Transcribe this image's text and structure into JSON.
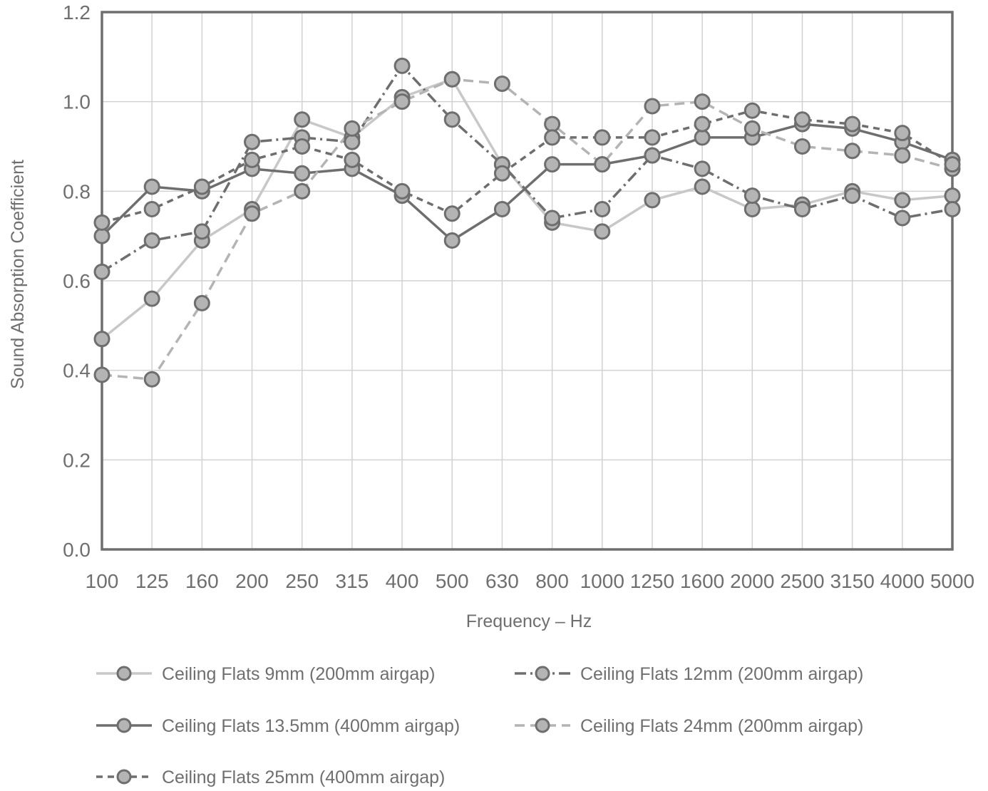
{
  "chart_data": {
    "type": "line",
    "title": "",
    "xlabel": "Frequency – Hz",
    "ylabel": "Sound Absorption Coefficient",
    "x": [
      "100",
      "125",
      "160",
      "200",
      "250",
      "315",
      "400",
      "500",
      "630",
      "800",
      "1000",
      "1250",
      "1600",
      "2000",
      "2500",
      "3150",
      "4000",
      "5000"
    ],
    "ylim": [
      0,
      1.2
    ],
    "yticks": [
      "0.0",
      "0.2",
      "0.4",
      "0.6",
      "0.8",
      "1.0",
      "1.2"
    ],
    "grid": true,
    "legend_position": "bottom",
    "series": [
      {
        "name": "Ceiling Flats 9mm  (200mm airgap)",
        "line_style": "solid",
        "color": "#c8c8c8",
        "values": [
          0.47,
          0.56,
          0.69,
          0.76,
          0.96,
          0.92,
          1.01,
          1.05,
          0.86,
          0.73,
          0.71,
          0.78,
          0.81,
          0.76,
          0.77,
          0.8,
          0.78,
          0.79
        ]
      },
      {
        "name": "Ceiling Flats 12mm  (200mm airgap)",
        "line_style": "dashdot",
        "color": "#6e6e6e",
        "values": [
          0.62,
          0.69,
          0.71,
          0.91,
          0.92,
          0.91,
          1.08,
          0.96,
          0.86,
          0.74,
          0.76,
          0.88,
          0.85,
          0.79,
          0.76,
          0.79,
          0.74,
          0.76
        ]
      },
      {
        "name": "Ceiling Flats 13.5mm  (400mm airgap)",
        "line_style": "solid",
        "color": "#6e6e6e",
        "values": [
          0.7,
          0.81,
          0.8,
          0.85,
          0.84,
          0.85,
          0.79,
          0.69,
          0.76,
          0.86,
          0.86,
          0.88,
          0.92,
          0.92,
          0.95,
          0.94,
          0.91,
          0.87
        ]
      },
      {
        "name": "Ceiling Flats 24mm  (200mm airgap)",
        "line_style": "dashed",
        "color": "#b4b4b4",
        "values": [
          0.39,
          0.38,
          0.55,
          0.75,
          0.8,
          0.94,
          1.0,
          1.05,
          1.04,
          0.95,
          0.86,
          0.99,
          1.0,
          0.94,
          0.9,
          0.89,
          0.88,
          0.85
        ]
      },
      {
        "name": "Ceiling Flats 25mm  (400mm airgap)",
        "line_style": "dotted",
        "color": "#6e6e6e",
        "values": [
          0.73,
          0.76,
          0.81,
          0.87,
          0.9,
          0.87,
          0.8,
          0.75,
          0.84,
          0.92,
          0.92,
          0.92,
          0.95,
          0.98,
          0.96,
          0.95,
          0.93,
          0.86
        ]
      }
    ]
  }
}
